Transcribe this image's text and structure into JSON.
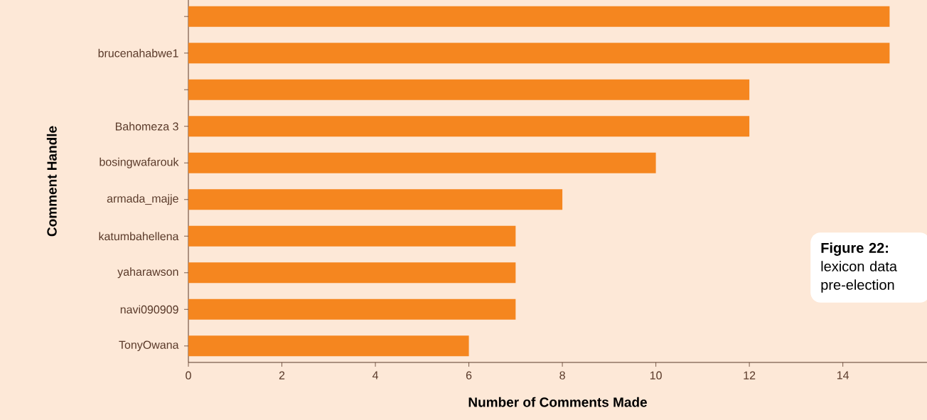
{
  "chart_data": {
    "type": "bar",
    "orientation": "horizontal",
    "xlabel": "Number of Comments Made",
    "ylabel": "Comment Handle",
    "categories": [
      null,
      "brucenahabwe1",
      null,
      "Bahomeza 3",
      "bosingwafarouk",
      "armada_majje",
      "katumbahellena",
      "yaharawson",
      "navi090909",
      "TonyOwana"
    ],
    "values": [
      15,
      15,
      12,
      12,
      10,
      8,
      7,
      7,
      7,
      6
    ],
    "color": "#f5861f",
    "xlim": [
      0,
      15.8
    ],
    "xticks": [
      0,
      2,
      4,
      6,
      8,
      10,
      12,
      14
    ],
    "annotations": [
      "**Figure 22:** lexicon data pre-election"
    ]
  }
}
